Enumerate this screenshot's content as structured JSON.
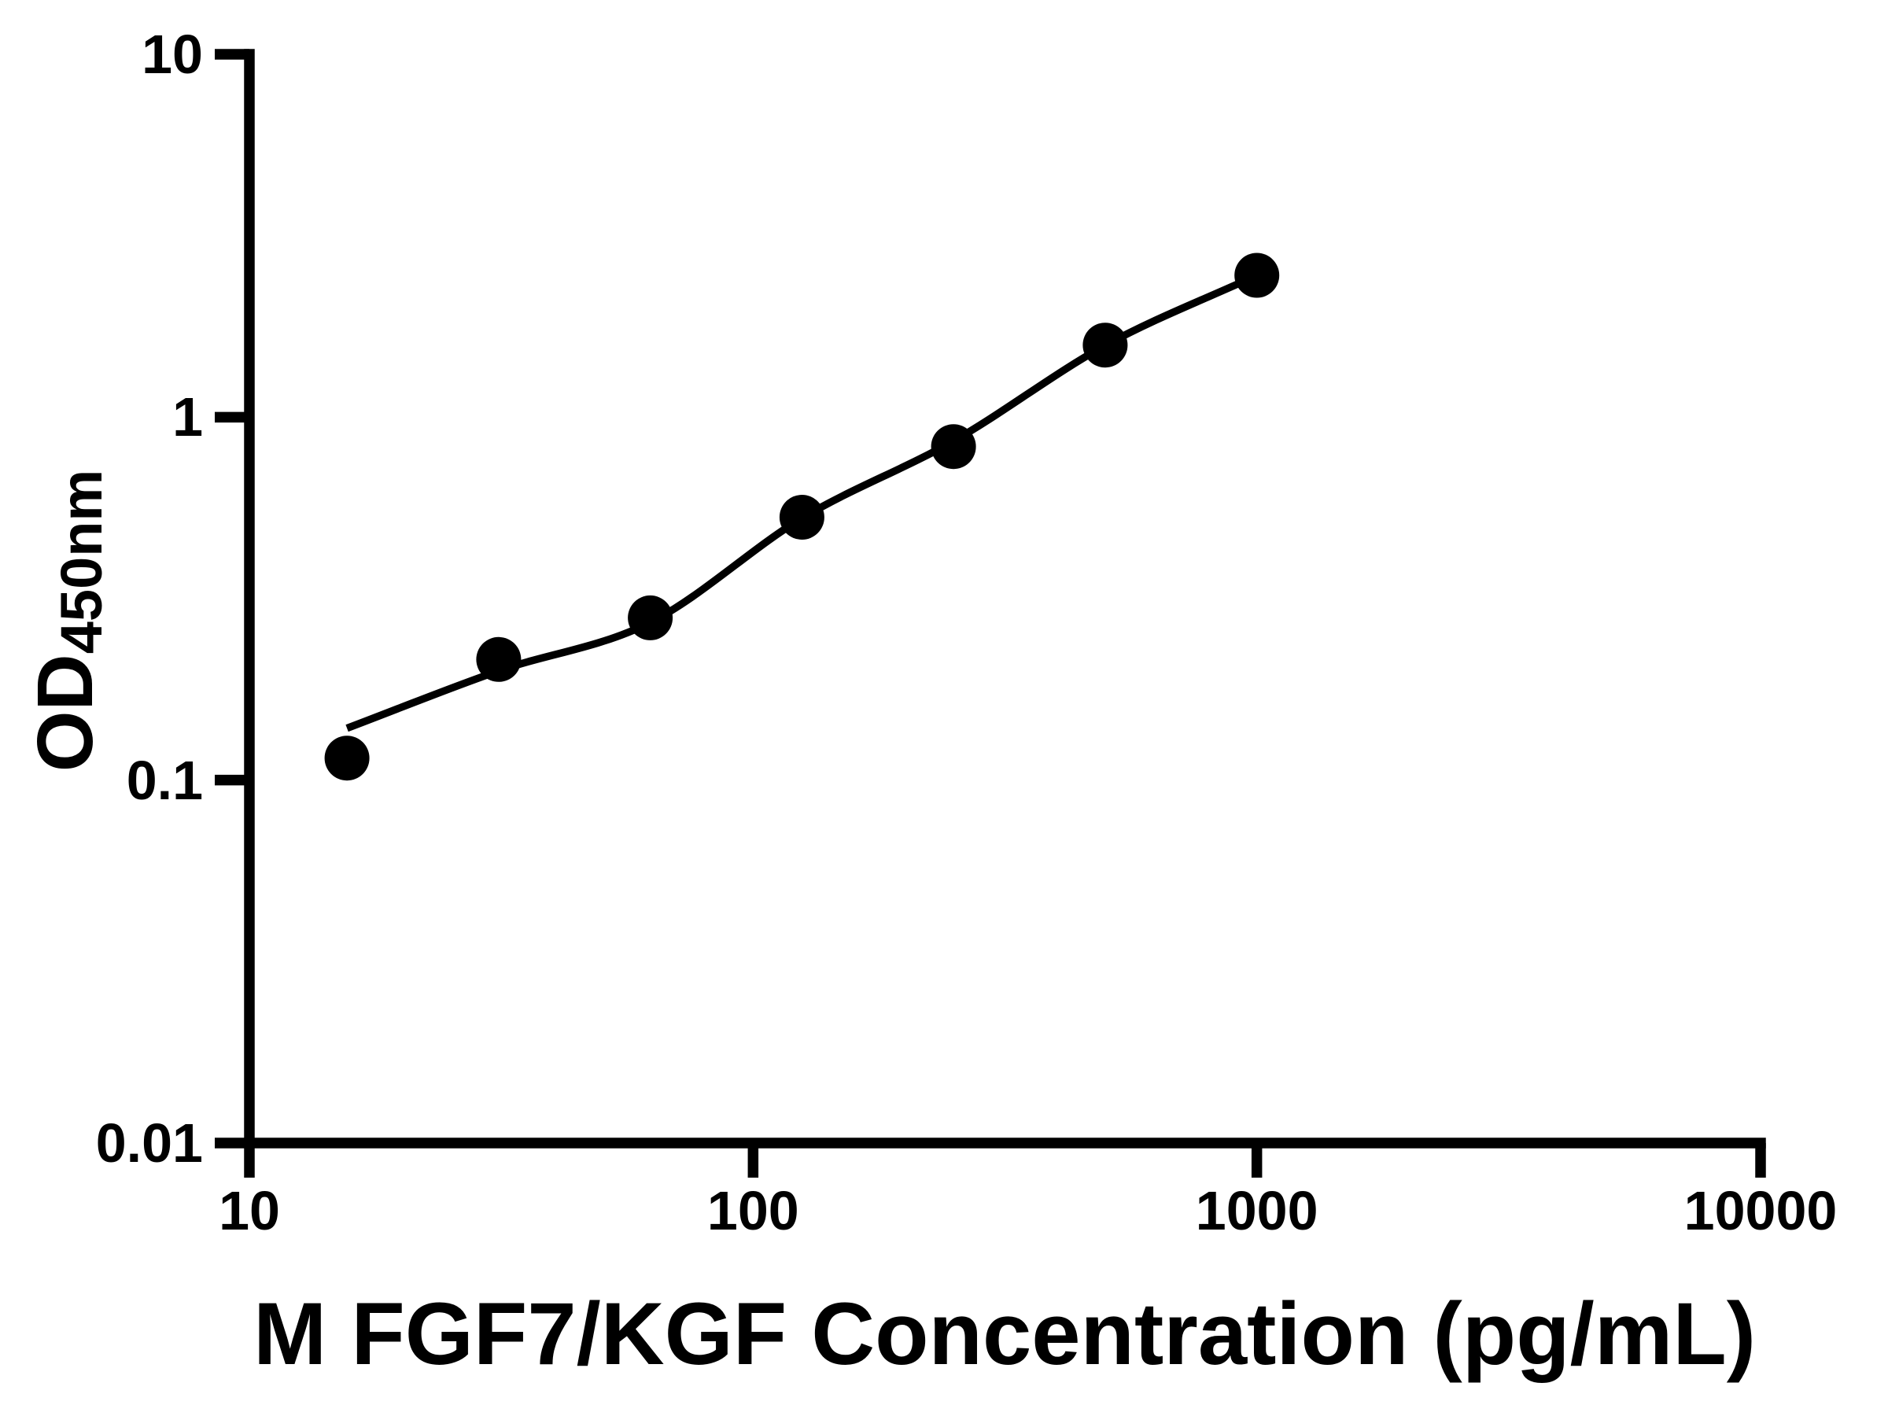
{
  "figure": {
    "background": "#ffffff",
    "foreground": "#000000"
  },
  "axes": {
    "x": {
      "title": "M FGF7/KGF Concentration (pg/mL)",
      "scale": "log",
      "range": [
        10,
        10000
      ],
      "ticks": [
        {
          "label": "10",
          "value": 10
        },
        {
          "label": "100",
          "value": 100
        },
        {
          "label": "1000",
          "value": 1000
        },
        {
          "label": "10000",
          "value": 10000
        }
      ]
    },
    "y": {
      "title_main": "OD",
      "title_sub": "450nm",
      "scale": "log",
      "range": [
        0.01,
        10
      ],
      "ticks": [
        {
          "label": "10",
          "value": 10
        },
        {
          "label": "1",
          "value": 1
        },
        {
          "label": "0.1",
          "value": 0.1
        },
        {
          "label": "0.01",
          "value": 0.01
        }
      ]
    }
  },
  "chart_data": {
    "type": "scatter",
    "title": "",
    "xlabel": "M FGF7/KGF Concentration (pg/mL)",
    "ylabel": "OD450nm",
    "x_scale": "log",
    "y_scale": "log",
    "xlim": [
      10,
      10000
    ],
    "ylim": [
      0.01,
      10
    ],
    "grid": false,
    "legend": false,
    "marker": {
      "shape": "circle",
      "color": "#000000",
      "radius_px": 28.5
    },
    "curve_color": "#000000",
    "points": [
      {
        "x": 15.625,
        "y": 0.115
      },
      {
        "x": 31.25,
        "y": 0.215
      },
      {
        "x": 62.5,
        "y": 0.28
      },
      {
        "x": 125,
        "y": 0.53
      },
      {
        "x": 250,
        "y": 0.83
      },
      {
        "x": 500,
        "y": 1.58
      },
      {
        "x": 1000,
        "y": 2.46
      }
    ],
    "fit_curve": [
      {
        "x": 15.625,
        "y": 0.139
      },
      {
        "x": 31.25,
        "y": 0.2
      },
      {
        "x": 62.5,
        "y": 0.272
      },
      {
        "x": 125,
        "y": 0.527
      },
      {
        "x": 250,
        "y": 0.86
      },
      {
        "x": 500,
        "y": 1.577
      },
      {
        "x": 1000,
        "y": 2.46
      }
    ]
  }
}
